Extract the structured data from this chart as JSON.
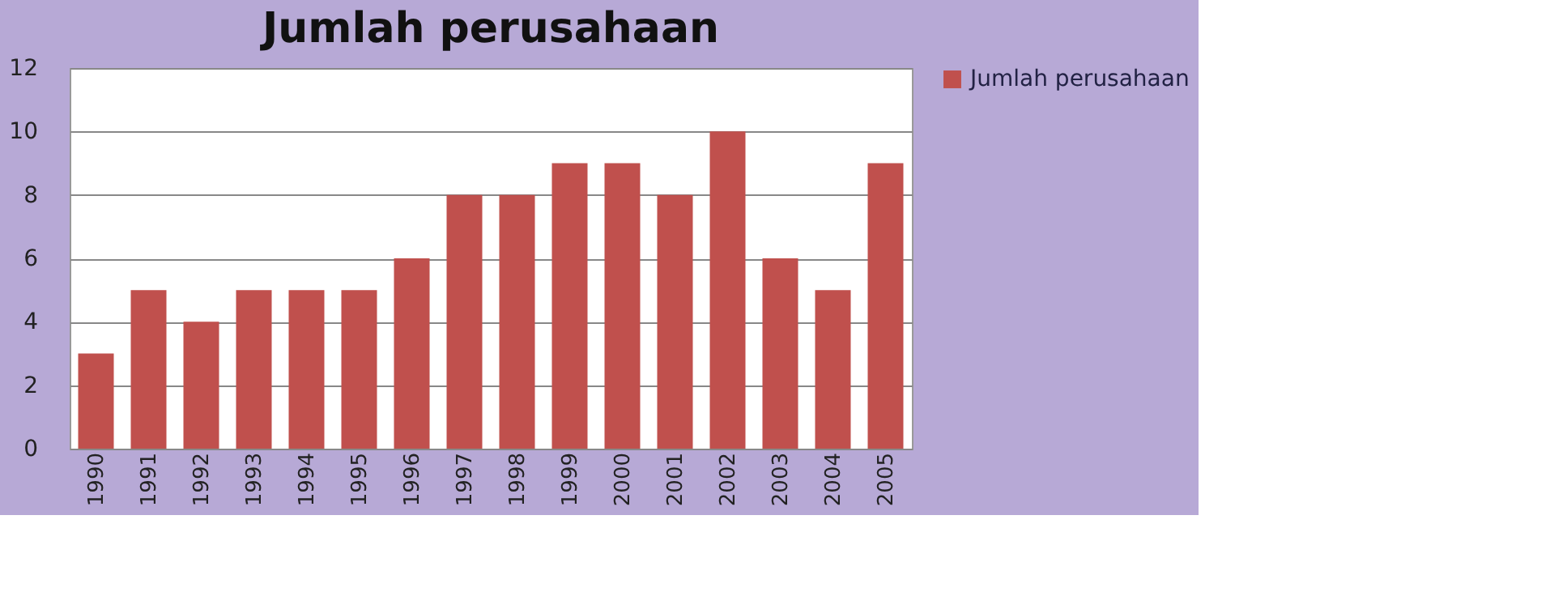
{
  "chart_data": {
    "type": "bar",
    "title": "Jumlah perusahaan",
    "categories": [
      "1990",
      "1991",
      "1992",
      "1993",
      "1994",
      "1995",
      "1996",
      "1997",
      "1998",
      "1999",
      "2000",
      "2001",
      "2002",
      "2003",
      "2004",
      "2005"
    ],
    "series": [
      {
        "name": "Jumlah perusahaan",
        "color": "#c0504d",
        "values": [
          3,
          5,
          4,
          5,
          5,
          5,
          6,
          8,
          8,
          9,
          9,
          8,
          10,
          6,
          5,
          9
        ]
      }
    ],
    "ylim": [
      0,
      12
    ],
    "yticks": [
      0,
      2,
      4,
      6,
      8,
      10,
      12
    ],
    "grid": "y",
    "legend": "top right"
  }
}
